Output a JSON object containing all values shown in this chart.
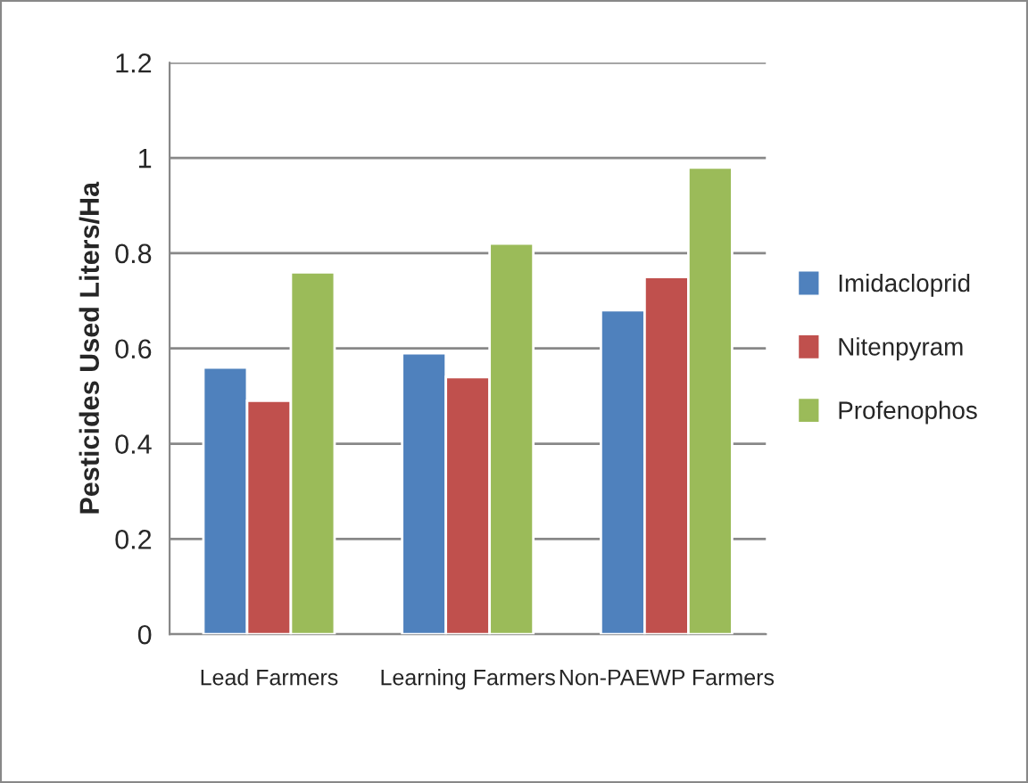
{
  "chart_data": {
    "type": "bar",
    "ylabel": "Pesticides Used Liters/Ha",
    "categories": [
      "Lead Farmers",
      "Learning Farmers",
      "Non-PAEWP Farmers"
    ],
    "series": [
      {
        "name": "Imidacloprid",
        "color": "#4f81bd",
        "values": [
          0.56,
          0.59,
          0.68
        ]
      },
      {
        "name": "Nitenpyram",
        "color": "#c0504d",
        "values": [
          0.49,
          0.54,
          0.75
        ]
      },
      {
        "name": "Profenophos",
        "color": "#9bbb59",
        "values": [
          0.76,
          0.82,
          0.98
        ]
      }
    ],
    "ylim": [
      0,
      1.2
    ],
    "yticks": [
      0,
      0.2,
      0.4,
      0.6,
      0.8,
      1,
      1.2
    ],
    "grid": "y",
    "legend": "right"
  }
}
